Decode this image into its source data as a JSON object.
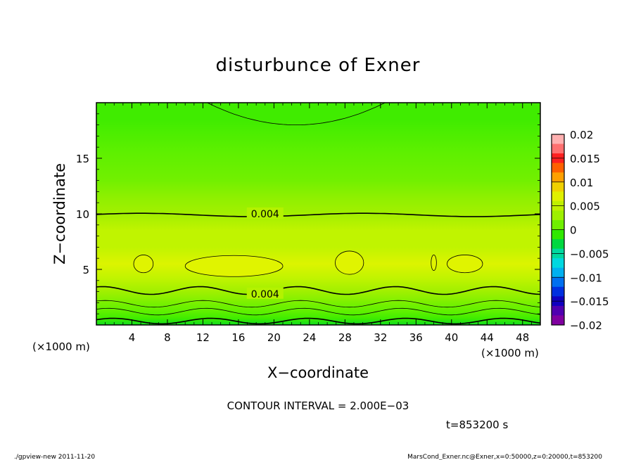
{
  "chart_data": {
    "type": "heatmap",
    "title": "disturbunce of Exner",
    "xlabel": "X−coordinate",
    "ylabel": "Z−coordinate",
    "x_unit_left": "(×1000 m)",
    "x_unit_right": "(×1000 m)",
    "xlim": [
      0,
      50
    ],
    "ylim": [
      0,
      20
    ],
    "x_ticks": [
      4,
      8,
      12,
      16,
      20,
      24,
      28,
      32,
      36,
      40,
      44,
      48
    ],
    "y_ticks": [
      5,
      10,
      15
    ],
    "contour_levels_labeled": [
      {
        "label": "0.004",
        "x": 19.0,
        "z": 10.0
      },
      {
        "label": "0.004",
        "x": 19.0,
        "z": 2.8
      }
    ],
    "field_profile": [
      {
        "z": 0.0,
        "value": -0.001
      },
      {
        "z": 0.6,
        "value": 0.0
      },
      {
        "z": 1.2,
        "value": 0.001
      },
      {
        "z": 1.8,
        "value": 0.002
      },
      {
        "z": 2.5,
        "value": 0.003
      },
      {
        "z": 3.2,
        "value": 0.004
      },
      {
        "z": 4.2,
        "value": 0.005
      },
      {
        "z": 5.5,
        "value": 0.0056
      },
      {
        "z": 7.0,
        "value": 0.005
      },
      {
        "z": 8.5,
        "value": 0.0045
      },
      {
        "z": 9.8,
        "value": 0.004
      },
      {
        "z": 11.5,
        "value": 0.003
      },
      {
        "z": 13.0,
        "value": 0.002
      },
      {
        "z": 15.5,
        "value": 0.001
      },
      {
        "z": 18.5,
        "value": 0.0
      },
      {
        "z": 20.0,
        "value": 0.0
      }
    ],
    "colorbar": {
      "ticks": [
        "0.02",
        "0.015",
        "0.01",
        "0.005",
        "0",
        "−0.005",
        "−0.01",
        "−0.015",
        "−0.02"
      ],
      "colors_top_to_bottom": [
        "#ffb0b0",
        "#ff7070",
        "#ff2020",
        "#ff6000",
        "#ffa000",
        "#f0d000",
        "#e0f000",
        "#c0f000",
        "#9ef000",
        "#6fef00",
        "#30e800",
        "#00d840",
        "#00d8a0",
        "#00d8e0",
        "#00b0f0",
        "#0070f0",
        "#0030e0",
        "#1000c0",
        "#5000b0",
        "#8000a0"
      ]
    },
    "contour_interval_label": "CONTOUR INTERVAL = 2.000E−03",
    "time_label": "t=853200 s"
  },
  "footer": {
    "left": "./gpview-new   2011-11-20",
    "right": "MarsCond_Exner.nc@Exner,x=0:50000,z=0:20000,t=853200"
  },
  "colors": {
    "frame": "#000000",
    "background": "#ffffff"
  }
}
